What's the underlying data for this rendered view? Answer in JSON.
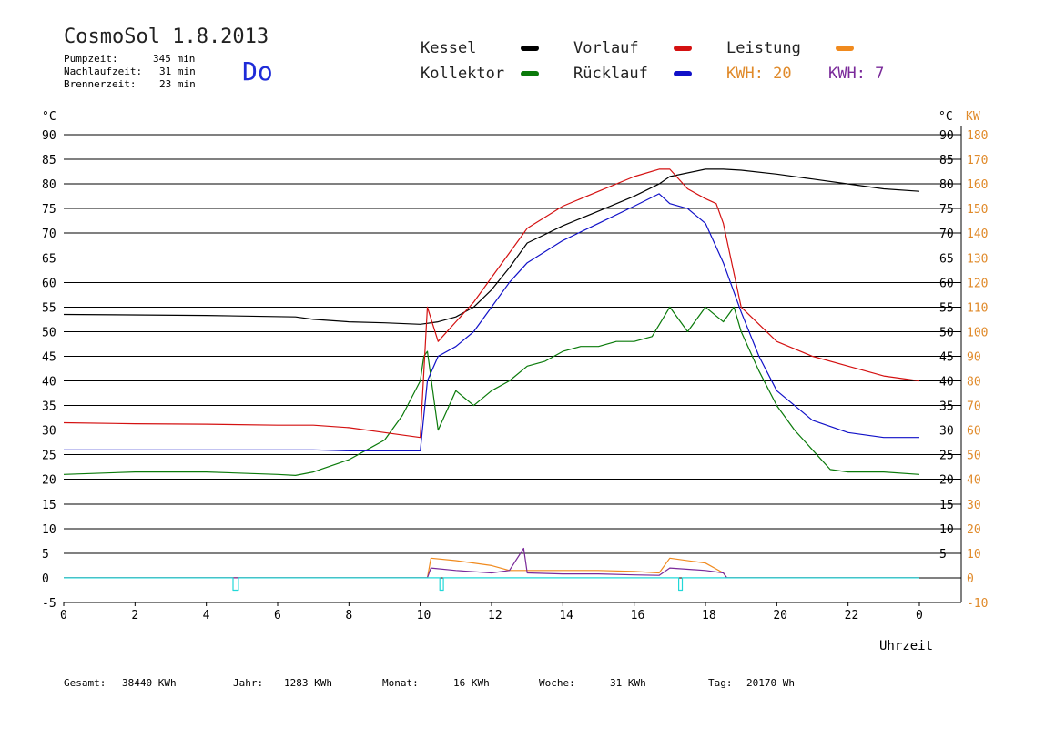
{
  "header": {
    "title": "CosmoSol 1.8.2013",
    "day": "Do",
    "stats": [
      {
        "label": "Pumpzeit:",
        "value": "345 min"
      },
      {
        "label": "Nachlaufzeit:",
        "value": "31 min"
      },
      {
        "label": "Brennerzeit:",
        "value": "23 min"
      }
    ]
  },
  "legend": {
    "kessel": "Kessel",
    "kollektor": "Kollektor",
    "vorlauf": "Vorlauf",
    "ruecklauf": "Rücklauf",
    "leistung": "Leistung",
    "kwh1": "KWH: 20",
    "kwh2": "KWH: 7"
  },
  "colors": {
    "kessel": "#000000",
    "kollektor": "#0a7a0a",
    "vorlauf": "#d41111",
    "ruecklauf": "#1111c8",
    "leistung": "#f08a1e",
    "kwh2": "#7a2a9a",
    "baseline": "#22d8d8",
    "day": "#1e2bd8",
    "kw_axis": "#e08a2a"
  },
  "footer": [
    {
      "label": "Gesamt:",
      "value": "38440 KWh"
    },
    {
      "label": "Jahr:",
      "value": "1283 KWh"
    },
    {
      "label": "Monat:",
      "value": "16 KWh"
    },
    {
      "label": "Woche:",
      "value": "31 KWh"
    },
    {
      "label": "Tag:",
      "value": "20170 Wh"
    }
  ],
  "chart_data": {
    "type": "line",
    "xlabel": "Uhrzeit",
    "ylabel": "°C",
    "ylabel_right": "°C",
    "ylabel_right2": "KW",
    "xlim": [
      0,
      24
    ],
    "ylim": [
      -5,
      90
    ],
    "x_ticks": [
      "0",
      "2",
      "4",
      "6",
      "8",
      "10",
      "12",
      "14",
      "16",
      "18",
      "20",
      "22",
      "0"
    ],
    "y_ticks": [
      -5,
      0,
      5,
      10,
      15,
      20,
      25,
      30,
      35,
      40,
      45,
      50,
      55,
      60,
      65,
      70,
      75,
      80,
      85,
      90
    ],
    "y_ticks_right": [
      "",
      "",
      "5",
      "10",
      "15",
      "20",
      "25",
      "30",
      "35",
      "40",
      "45",
      "50",
      "55",
      "60",
      "65",
      "70",
      "75",
      "80",
      "85",
      "90"
    ],
    "kw_ticks": [
      -10,
      0,
      10,
      20,
      30,
      40,
      50,
      60,
      70,
      80,
      90,
      100,
      110,
      120,
      130,
      140,
      150,
      160,
      170,
      180
    ],
    "grid": "horizontal",
    "series": [
      {
        "name": "Kessel",
        "key": "kessel",
        "x": [
          0,
          4,
          6.5,
          7,
          8,
          9,
          10,
          10.5,
          11,
          11.5,
          12,
          12.5,
          13,
          14,
          15,
          16,
          16.7,
          17,
          18,
          18.5,
          19,
          20,
          21,
          22,
          23,
          24
        ],
        "y": [
          53.5,
          53.3,
          53,
          52.5,
          52,
          51.8,
          51.5,
          52,
          53,
          55,
          58.5,
          63,
          68,
          71.5,
          74.5,
          77.5,
          80,
          81.5,
          83,
          83,
          82.8,
          82,
          81,
          80,
          79,
          78.5
        ]
      },
      {
        "name": "Kollektor",
        "key": "kollektor",
        "x": [
          0,
          2,
          4,
          6,
          6.5,
          7,
          8,
          8.5,
          9,
          9.5,
          10,
          10.1,
          10.2,
          10.5,
          11,
          11.5,
          12,
          12.5,
          13,
          13.5,
          14,
          14.5,
          15,
          15.5,
          16,
          16.5,
          17,
          17.5,
          18,
          18.5,
          18.8,
          19,
          19.5,
          20,
          20.5,
          21,
          21.5,
          22,
          23,
          24
        ],
        "y": [
          21,
          21.5,
          21.5,
          21,
          20.8,
          21.5,
          24,
          26,
          28,
          33,
          40,
          45,
          46,
          30,
          38,
          35,
          38,
          40,
          43,
          44,
          46,
          47,
          47,
          48,
          48,
          49,
          55,
          50,
          55,
          52,
          55,
          50,
          42,
          35,
          30,
          26,
          22,
          21.5,
          21.5,
          21
        ]
      },
      {
        "name": "Vorlauf",
        "key": "vorlauf",
        "x": [
          0,
          2,
          4,
          6,
          7,
          8,
          9,
          10,
          10.2,
          10.5,
          11,
          11.5,
          12,
          12.5,
          13,
          14,
          15,
          16,
          16.7,
          17,
          17.5,
          18,
          18.3,
          18.5,
          19,
          20,
          21,
          22,
          23,
          24
        ],
        "y": [
          31.5,
          31.3,
          31.2,
          31,
          31,
          30.5,
          29.5,
          28.5,
          55,
          48,
          52,
          56,
          61,
          66,
          71,
          75.5,
          78.5,
          81.5,
          83,
          83,
          79,
          77,
          76,
          72,
          55,
          48,
          45,
          43,
          41,
          40
        ]
      },
      {
        "name": "Rücklauf",
        "key": "ruecklauf",
        "x": [
          0,
          2,
          4,
          6,
          7,
          8,
          9,
          10,
          10.2,
          10.5,
          11,
          11.5,
          12,
          12.5,
          13,
          14,
          15,
          16,
          16.7,
          17,
          17.5,
          18,
          18.5,
          19,
          19.5,
          20,
          20.5,
          21,
          22,
          23,
          24
        ],
        "y": [
          26,
          26,
          26,
          26,
          26,
          25.8,
          25.8,
          25.8,
          40,
          45,
          47,
          50,
          55,
          60,
          64,
          68.5,
          72,
          75.5,
          78,
          76,
          75,
          72,
          64,
          54,
          45,
          38,
          35,
          32,
          29.5,
          28.5,
          28.5
        ]
      },
      {
        "name": "Leistung",
        "key": "leistung",
        "x": [
          0,
          10.2,
          10.3,
          11,
          12,
          12.5,
          13,
          14,
          15,
          16,
          16.7,
          17,
          18,
          18.5,
          18.6,
          24
        ],
        "y": [
          0,
          0,
          4,
          3.5,
          2.5,
          1.5,
          1.5,
          1.5,
          1.5,
          1.3,
          1,
          4,
          3,
          1,
          0,
          0
        ]
      },
      {
        "name": "KWH 2",
        "key": "kwh2",
        "x": [
          0,
          10.2,
          10.3,
          11,
          12,
          12.5,
          12.9,
          13,
          14,
          15,
          16,
          16.7,
          17,
          18,
          18.5,
          18.6,
          24
        ],
        "y": [
          0,
          0,
          2,
          1.5,
          1,
          1.5,
          6,
          1,
          0.8,
          0.8,
          0.6,
          0.5,
          2,
          1.5,
          1,
          0,
          0
        ]
      },
      {
        "name": "Baseline",
        "key": "baseline",
        "x": [
          0,
          4.75,
          4.75,
          4.9,
          4.9,
          10.55,
          10.55,
          10.65,
          10.65,
          17.25,
          17.25,
          17.35,
          17.35,
          24
        ],
        "y": [
          0,
          0,
          -2.5,
          -2.5,
          0,
          0,
          -2.5,
          -2.5,
          0,
          0,
          -2.5,
          -2.5,
          0,
          0
        ]
      }
    ]
  }
}
